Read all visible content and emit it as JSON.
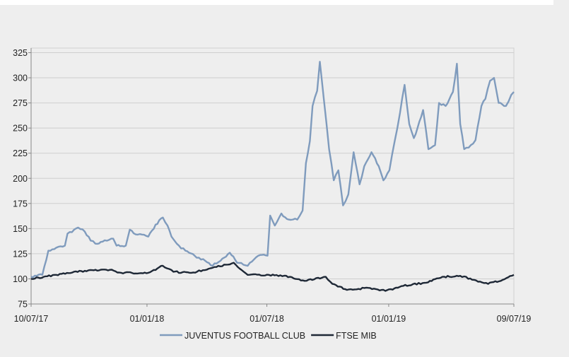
{
  "chart_data": {
    "type": "line",
    "title": "",
    "xlabel": "",
    "ylabel": "",
    "xlim": [
      "2017-07-10",
      "2019-07-09"
    ],
    "ylim": [
      75,
      325
    ],
    "yticks": [
      75,
      100,
      125,
      150,
      175,
      200,
      225,
      250,
      275,
      300,
      325
    ],
    "xtick_labels": [
      {
        "date": "2017-07-10",
        "label": "10/07/17"
      },
      {
        "date": "2018-01-01",
        "label": "01/01/18"
      },
      {
        "date": "2018-07-01",
        "label": "01/07/18"
      },
      {
        "date": "2019-01-01",
        "label": "01/01/19"
      },
      {
        "date": "2019-07-09",
        "label": "09/07/19"
      }
    ],
    "grid": true,
    "legend_position": "bottom",
    "series": [
      {
        "name": "JUVENTUS FOOTBALL CLUB",
        "color": "#7f9bbd",
        "points": [
          [
            "2017-07-10",
            102
          ],
          [
            "2017-07-27",
            104
          ],
          [
            "2017-08-05",
            128
          ],
          [
            "2017-08-17",
            131
          ],
          [
            "2017-08-30",
            133
          ],
          [
            "2017-09-03",
            145
          ],
          [
            "2017-09-13",
            149
          ],
          [
            "2017-09-19",
            151
          ],
          [
            "2017-09-29",
            147
          ],
          [
            "2017-10-08",
            138
          ],
          [
            "2017-10-15",
            135
          ],
          [
            "2017-10-26",
            137
          ],
          [
            "2017-11-11",
            140
          ],
          [
            "2017-11-16",
            133
          ],
          [
            "2017-11-30",
            133
          ],
          [
            "2017-12-06",
            149
          ],
          [
            "2017-12-18",
            144
          ],
          [
            "2018-01-03",
            142
          ],
          [
            "2018-01-14",
            154
          ],
          [
            "2018-01-25",
            161
          ],
          [
            "2018-02-01",
            153
          ],
          [
            "2018-02-07",
            142
          ],
          [
            "2018-02-15",
            135
          ],
          [
            "2018-02-28",
            128
          ],
          [
            "2018-03-14",
            123
          ],
          [
            "2018-03-30",
            118
          ],
          [
            "2018-04-10",
            113
          ],
          [
            "2018-04-22",
            118
          ],
          [
            "2018-05-06",
            126
          ],
          [
            "2018-05-17",
            116
          ],
          [
            "2018-06-02",
            113
          ],
          [
            "2018-06-18",
            123
          ],
          [
            "2018-07-02",
            123
          ],
          [
            "2018-07-06",
            163
          ],
          [
            "2018-07-13",
            153
          ],
          [
            "2018-07-23",
            165
          ],
          [
            "2018-08-03",
            159
          ],
          [
            "2018-08-16",
            159
          ],
          [
            "2018-08-24",
            168
          ],
          [
            "2018-08-29",
            215
          ],
          [
            "2018-09-04",
            237
          ],
          [
            "2018-09-08",
            272
          ],
          [
            "2018-09-15",
            287
          ],
          [
            "2018-09-19",
            316
          ],
          [
            "2018-09-25",
            279
          ],
          [
            "2018-10-03",
            229
          ],
          [
            "2018-10-10",
            198
          ],
          [
            "2018-10-17",
            208
          ],
          [
            "2018-10-24",
            173
          ],
          [
            "2018-11-01",
            184
          ],
          [
            "2018-11-09",
            226
          ],
          [
            "2018-11-18",
            194
          ],
          [
            "2018-11-25",
            212
          ],
          [
            "2018-12-06",
            226
          ],
          [
            "2018-12-17",
            212
          ],
          [
            "2018-12-24",
            198
          ],
          [
            "2019-01-02",
            208
          ],
          [
            "2019-01-10",
            237
          ],
          [
            "2019-01-18",
            265
          ],
          [
            "2019-01-25",
            293
          ],
          [
            "2019-02-01",
            254
          ],
          [
            "2019-02-08",
            240
          ],
          [
            "2019-02-19",
            261
          ],
          [
            "2019-02-22",
            268
          ],
          [
            "2019-03-02",
            229
          ],
          [
            "2019-03-12",
            233
          ],
          [
            "2019-03-18",
            275
          ],
          [
            "2019-03-28",
            272
          ],
          [
            "2019-04-08",
            286
          ],
          [
            "2019-04-14",
            314
          ],
          [
            "2019-04-19",
            254
          ],
          [
            "2019-04-25",
            229
          ],
          [
            "2019-05-05",
            233
          ],
          [
            "2019-05-12",
            238
          ],
          [
            "2019-05-21",
            272
          ],
          [
            "2019-05-27",
            279
          ],
          [
            "2019-06-03",
            297
          ],
          [
            "2019-06-09",
            300
          ],
          [
            "2019-06-16",
            275
          ],
          [
            "2019-06-27",
            272
          ],
          [
            "2019-07-05",
            283
          ],
          [
            "2019-07-09",
            286
          ]
        ]
      },
      {
        "name": "FTSE MIB",
        "color": "#1e2836",
        "points": [
          [
            "2017-07-10",
            100
          ],
          [
            "2017-08-17",
            104
          ],
          [
            "2017-09-29",
            108
          ],
          [
            "2017-11-06",
            109
          ],
          [
            "2017-11-23",
            106
          ],
          [
            "2018-01-03",
            106
          ],
          [
            "2018-01-25",
            113
          ],
          [
            "2018-02-10",
            107
          ],
          [
            "2018-03-09",
            106
          ],
          [
            "2018-04-10",
            111
          ],
          [
            "2018-05-12",
            116
          ],
          [
            "2018-06-02",
            104
          ],
          [
            "2018-07-04",
            104
          ],
          [
            "2018-08-05",
            102
          ],
          [
            "2018-08-27",
            98
          ],
          [
            "2018-09-28",
            102
          ],
          [
            "2018-10-08",
            95
          ],
          [
            "2018-10-30",
            89
          ],
          [
            "2018-12-01",
            91
          ],
          [
            "2018-12-27",
            88
          ],
          [
            "2019-01-23",
            93
          ],
          [
            "2019-02-24",
            96
          ],
          [
            "2019-03-23",
            102
          ],
          [
            "2019-04-19",
            103
          ],
          [
            "2019-05-10",
            99
          ],
          [
            "2019-05-31",
            95
          ],
          [
            "2019-06-22",
            99
          ],
          [
            "2019-07-09",
            104
          ]
        ]
      }
    ]
  }
}
